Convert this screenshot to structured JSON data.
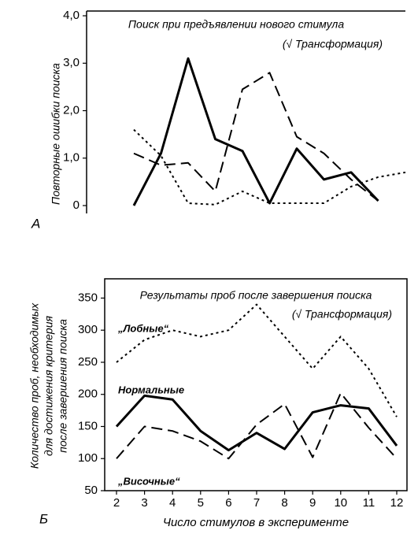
{
  "chart_data": [
    {
      "type": "line",
      "panel_label": "А",
      "title": "Поиск при предъявлении нового стимула",
      "subtitle": "(√ Трансформация)",
      "y_label": "Повторные ошибки поиска",
      "categories": [
        null,
        null,
        null,
        null,
        null,
        null,
        null,
        null,
        null,
        null,
        null
      ],
      "ylim": [
        0,
        4.1
      ],
      "yticks": [
        0,
        {
          "value": 1,
          "label": "1,0"
        },
        {
          "value": 2,
          "label": "2,0"
        },
        {
          "value": 3,
          "label": "3,0"
        },
        {
          "value": 4,
          "label": "4,0"
        }
      ],
      "series": [
        {
          "color": "#000000",
          "dash": "solid",
          "values": [
            0,
            1.1,
            3.1,
            1.4,
            1.15,
            0.05,
            1.2,
            0.55,
            0.7,
            0.1,
            null
          ]
        },
        {
          "color": "#000000",
          "dash": "dashed",
          "values": [
            1.1,
            0.85,
            0.9,
            0.3,
            2.45,
            2.8,
            1.45,
            1.1,
            0.55,
            0.1,
            null
          ]
        },
        {
          "color": "#000000",
          "dash": "dotted",
          "values": [
            1.6,
            1.05,
            0.05,
            0.02,
            0.3,
            0.05,
            0.05,
            0.05,
            0.4,
            0.6,
            0.7
          ]
        }
      ]
    },
    {
      "type": "line",
      "panel_label": "Б",
      "title": "Результаты проб после завершения поиска",
      "subtitle": "(√ Трансформация)",
      "y_label": [
        "Количество проб, необходимых",
        "для достижения критерия",
        "после завершения поиска"
      ],
      "x_label": "Число стимулов в эксперименте",
      "categories": [
        "2",
        "3",
        "4",
        "5",
        "6",
        "7",
        "8",
        "9",
        "10",
        "11",
        "12"
      ],
      "ylim": [
        50,
        380
      ],
      "yticks": [
        50,
        100,
        150,
        200,
        250,
        300,
        350
      ],
      "series": [
        {
          "name": "„Лобные“",
          "color": "#000000",
          "dash": "dotted",
          "values": [
            250,
            285,
            300,
            290,
            300,
            340,
            290,
            240,
            290,
            240,
            165
          ]
        },
        {
          "name": "Нормальные",
          "color": "#000000",
          "dash": "solid",
          "values": [
            150,
            198,
            192,
            143,
            113,
            140,
            115,
            172,
            183,
            178,
            120
          ]
        },
        {
          "name": "„Височные“",
          "color": "#000000",
          "dash": "dashed",
          "values": [
            100,
            150,
            143,
            127,
            100,
            153,
            185,
            102,
            202,
            148,
            100
          ]
        }
      ]
    }
  ]
}
